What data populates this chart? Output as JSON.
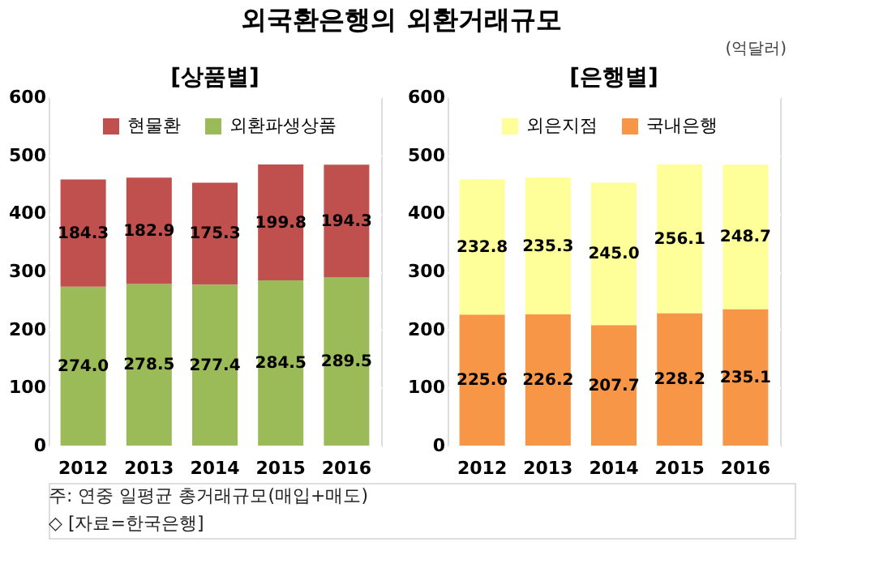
{
  "chart_data": [
    {
      "type": "bar",
      "title": "외국환은행의 외환거래규모",
      "subtitle": "[상품별]",
      "stacked": true,
      "categories": [
        "2012",
        "2013",
        "2014",
        "2015",
        "2016"
      ],
      "ylim": [
        0,
        600
      ],
      "yticks": [
        0,
        100,
        200,
        300,
        400,
        500,
        600
      ],
      "grid": "y",
      "legend": "top",
      "series": [
        {
          "name": "외환파생상품",
          "color": "#9bbb59",
          "values": [
            274.0,
            278.5,
            277.4,
            284.5,
            289.5
          ],
          "value_labels": [
            "274.0",
            "278.5",
            "277.4",
            "284.5",
            "289.5"
          ]
        },
        {
          "name": "현물환",
          "color": "#c0504d",
          "values": [
            184.3,
            182.9,
            175.3,
            199.8,
            194.3
          ],
          "value_labels": [
            "184.3",
            "182.9",
            "175.3",
            "199.8",
            "194.3"
          ]
        }
      ],
      "annotations": [
        "주: 연중 일평균 총거래규모(매입+매도)",
        "◇ [자료=한국은행]"
      ]
    },
    {
      "type": "bar",
      "subtitle": "[은행별]",
      "stacked": true,
      "categories": [
        "2012",
        "2013",
        "2014",
        "2015",
        "2016"
      ],
      "ylim": [
        0,
        600
      ],
      "yticks": [
        0,
        100,
        200,
        300,
        400,
        500,
        600
      ],
      "grid": "y",
      "legend": "top",
      "series": [
        {
          "name": "국내은행",
          "color": "#f79646",
          "values": [
            225.6,
            226.2,
            207.7,
            228.2,
            235.1
          ],
          "value_labels": [
            "225.6",
            "226.2",
            "207.7",
            "228.2",
            "235.1"
          ]
        },
        {
          "name": "외은지점",
          "color": "#ffff99",
          "values": [
            232.8,
            235.3,
            245.0,
            256.1,
            248.7
          ],
          "value_labels": [
            "232.8",
            "235.3",
            "245.0",
            "256.1",
            "248.7"
          ]
        }
      ],
      "annotations": [
        "(억달러)"
      ]
    }
  ]
}
